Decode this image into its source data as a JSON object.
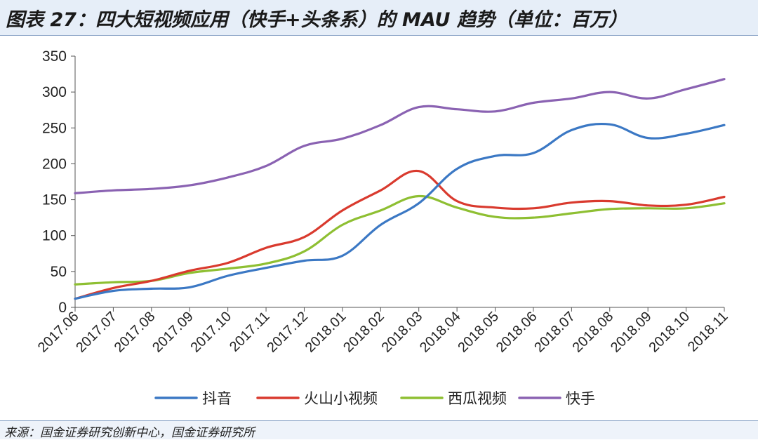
{
  "header": {
    "title": "图表 27：四大短视频应用（快手+头条系）的 MAU 趋势（单位：百万）"
  },
  "footer": {
    "source": "来源：国金证券研究创新中心，国金证券研究所"
  },
  "chart_data": {
    "type": "line",
    "title": "图表 27：四大短视频应用（快手+头条系）的 MAU 趋势（单位：百万）",
    "xlabel": "",
    "ylabel": "",
    "ylim": [
      0,
      350
    ],
    "yticks": [
      "0",
      "50",
      "100",
      "150",
      "200",
      "250",
      "300",
      "350"
    ],
    "categories": [
      "2017.06",
      "2017.07",
      "2017.08",
      "2017.09",
      "2017.10",
      "2017.11",
      "2017.12",
      "2018.01",
      "2018.02",
      "2018.03",
      "2018.04",
      "2018.05",
      "2018.06",
      "2018.07",
      "2018.08",
      "2018.09",
      "2018.10",
      "2018.11"
    ],
    "legend_position": "bottom",
    "series": [
      {
        "name": "抖音",
        "color": "#3b78c4",
        "values": [
          12,
          23,
          26,
          28,
          44,
          55,
          65,
          72,
          115,
          145,
          193,
          211,
          215,
          247,
          255,
          236,
          242,
          254
        ]
      },
      {
        "name": "火山小视频",
        "color": "#d93a2e",
        "values": [
          12,
          27,
          37,
          51,
          62,
          83,
          98,
          135,
          163,
          190,
          148,
          139,
          138,
          146,
          148,
          142,
          143,
          154
        ]
      },
      {
        "name": "西瓜视频",
        "color": "#8ebf32",
        "values": [
          32,
          35,
          37,
          48,
          54,
          61,
          78,
          115,
          135,
          155,
          139,
          126,
          125,
          131,
          137,
          138,
          138,
          145
        ]
      },
      {
        "name": "快手",
        "color": "#8a62b2",
        "values": [
          159,
          163,
          165,
          170,
          181,
          197,
          225,
          235,
          254,
          279,
          276,
          273,
          285,
          291,
          300,
          291,
          304,
          318
        ]
      }
    ]
  }
}
